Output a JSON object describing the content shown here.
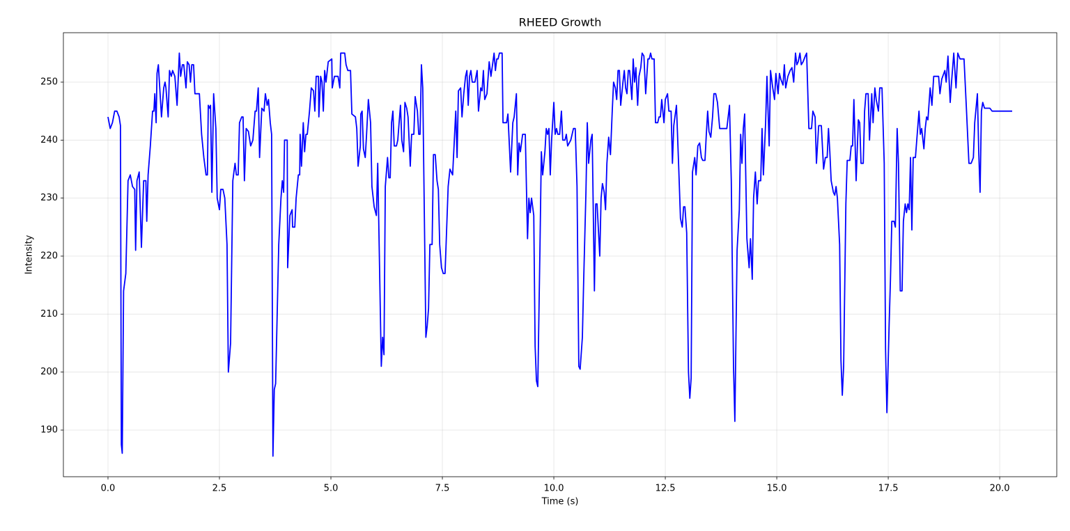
{
  "chart_data": {
    "type": "line",
    "title": "RHEED Growth",
    "x_label": "Time (s)",
    "y_label": "Intensity",
    "color": "#0000ff",
    "grid": true,
    "xlim": [
      -1.0,
      21.28
    ],
    "ylim": [
      181.96,
      258.52
    ],
    "xticks": [
      {
        "value": 0,
        "label": "0.0"
      },
      2.5,
      {
        "value": 5,
        "label": "5.0"
      },
      7.5,
      {
        "value": 10,
        "label": "10.0"
      },
      12.5,
      {
        "value": 15,
        "label": "15.0"
      },
      17.5,
      {
        "value": 20,
        "label": "20.0"
      }
    ],
    "yticks": [
      190,
      200,
      210,
      220,
      230,
      240,
      250
    ],
    "x": [
      0,
      0.05,
      0.1,
      0.15,
      0.2,
      0.25,
      0.28,
      0.3,
      0.32,
      0.35,
      0.4,
      0.45,
      0.5,
      0.55,
      0.6,
      0.62,
      0.65,
      0.7,
      0.75,
      0.8,
      0.85,
      0.87,
      0.9,
      0.95,
      1.0,
      1.03,
      1.05,
      1.08,
      1.1,
      1.13,
      1.2,
      1.25,
      1.28,
      1.3,
      1.35,
      1.38,
      1.42,
      1.45,
      1.5,
      1.55,
      1.6,
      1.63,
      1.67,
      1.7,
      1.75,
      1.78,
      1.82,
      1.85,
      1.88,
      1.92,
      1.95,
      2.05,
      2.1,
      2.15,
      2.2,
      2.23,
      2.25,
      2.28,
      2.3,
      2.33,
      2.37,
      2.42,
      2.45,
      2.5,
      2.53,
      2.58,
      2.62,
      2.67,
      2.7,
      2.75,
      2.8,
      2.85,
      2.88,
      2.92,
      2.95,
      3.0,
      3.03,
      3.06,
      3.1,
      3.15,
      3.2,
      3.25,
      3.3,
      3.33,
      3.37,
      3.4,
      3.45,
      3.5,
      3.53,
      3.57,
      3.6,
      3.64,
      3.67,
      3.7,
      3.73,
      3.76,
      3.83,
      3.88,
      3.91,
      3.94,
      3.96,
      4.02,
      4.03,
      4.08,
      4.13,
      4.14,
      4.19,
      4.22,
      4.27,
      4.3,
      4.31,
      4.34,
      4.38,
      4.41,
      4.44,
      4.47,
      4.52,
      4.56,
      4.61,
      4.64,
      4.67,
      4.72,
      4.73,
      4.77,
      4.8,
      4.83,
      4.86,
      4.89,
      4.94,
      5.02,
      5.03,
      5.08,
      5.16,
      5.2,
      5.22,
      5.31,
      5.34,
      5.38,
      5.44,
      5.47,
      5.55,
      5.58,
      5.61,
      5.66,
      5.67,
      5.7,
      5.73,
      5.77,
      5.8,
      5.84,
      5.89,
      5.92,
      5.97,
      6.02,
      6.05,
      6.13,
      6.16,
      6.19,
      6.22,
      6.27,
      6.3,
      6.33,
      6.36,
      6.39,
      6.42,
      6.47,
      6.5,
      6.56,
      6.59,
      6.63,
      6.66,
      6.7,
      6.73,
      6.78,
      6.81,
      6.86,
      6.89,
      6.94,
      6.97,
      7.0,
      7.03,
      7.06,
      7.13,
      7.16,
      7.19,
      7.22,
      7.27,
      7.3,
      7.34,
      7.38,
      7.41,
      7.44,
      7.48,
      7.52,
      7.56,
      7.63,
      7.67,
      7.73,
      7.8,
      7.83,
      7.86,
      7.91,
      7.94,
      7.98,
      8.02,
      8.05,
      8.08,
      8.11,
      8.14,
      8.17,
      8.23,
      8.28,
      8.31,
      8.36,
      8.39,
      8.42,
      8.45,
      8.5,
      8.55,
      8.59,
      8.66,
      8.69,
      8.72,
      8.75,
      8.78,
      8.84,
      8.86,
      8.94,
      8.97,
      9.03,
      9.08,
      9.11,
      9.16,
      9.19,
      9.22,
      9.25,
      9.3,
      9.36,
      9.41,
      9.44,
      9.47,
      9.5,
      9.55,
      9.58,
      9.61,
      9.64,
      9.69,
      9.72,
      9.75,
      9.8,
      9.83,
      9.86,
      9.89,
      9.92,
      9.95,
      10.0,
      10.03,
      10.06,
      10.09,
      10.13,
      10.17,
      10.2,
      10.25,
      10.28,
      10.31,
      10.38,
      10.44,
      10.48,
      10.52,
      10.56,
      10.59,
      10.64,
      10.67,
      10.72,
      10.75,
      10.78,
      10.83,
      10.86,
      10.91,
      10.94,
      10.97,
      11.03,
      11.06,
      11.09,
      11.13,
      11.16,
      11.19,
      11.23,
      11.27,
      11.31,
      11.34,
      11.38,
      11.41,
      11.44,
      11.47,
      11.5,
      11.55,
      11.58,
      11.61,
      11.64,
      11.67,
      11.7,
      11.75,
      11.78,
      11.81,
      11.84,
      11.88,
      11.91,
      11.95,
      11.98,
      12.02,
      12.06,
      12.11,
      12.14,
      12.17,
      12.2,
      12.25,
      12.28,
      12.33,
      12.36,
      12.39,
      12.42,
      12.47,
      12.5,
      12.55,
      12.58,
      12.63,
      12.66,
      12.69,
      12.75,
      12.8,
      12.84,
      12.88,
      12.91,
      12.94,
      12.98,
      13.02,
      13.05,
      13.08,
      13.11,
      13.16,
      13.19,
      13.23,
      13.27,
      13.31,
      13.34,
      13.39,
      13.42,
      13.45,
      13.48,
      13.52,
      13.56,
      13.59,
      13.63,
      13.67,
      13.72,
      13.88,
      13.94,
      13.98,
      14.03,
      14.06,
      14.11,
      14.16,
      14.19,
      14.22,
      14.25,
      14.28,
      14.33,
      14.38,
      14.41,
      14.45,
      14.48,
      14.52,
      14.56,
      14.59,
      14.64,
      14.67,
      14.7,
      14.75,
      14.78,
      14.83,
      14.86,
      14.91,
      14.95,
      14.98,
      15.03,
      15.06,
      15.09,
      15.14,
      15.17,
      15.2,
      15.25,
      15.3,
      15.34,
      15.38,
      15.42,
      15.45,
      15.48,
      15.52,
      15.55,
      15.59,
      15.64,
      15.67,
      15.72,
      15.78,
      15.81,
      15.86,
      15.89,
      15.94,
      16.0,
      16.05,
      16.09,
      16.13,
      16.16,
      16.19,
      16.22,
      16.27,
      16.3,
      16.33,
      16.36,
      16.41,
      16.44,
      16.47,
      16.5,
      16.55,
      16.58,
      16.64,
      16.67,
      16.7,
      16.73,
      16.78,
      16.83,
      16.86,
      16.89,
      16.94,
      16.97,
      17.0,
      17.05,
      17.08,
      17.13,
      17.16,
      17.2,
      17.23,
      17.28,
      17.31,
      17.36,
      17.41,
      17.44,
      17.47,
      17.52,
      17.55,
      17.58,
      17.63,
      17.66,
      17.7,
      17.73,
      17.77,
      17.81,
      17.84,
      17.88,
      17.91,
      17.94,
      17.97,
      18.0,
      18.03,
      18.06,
      18.11,
      18.16,
      18.19,
      18.22,
      18.25,
      18.3,
      18.33,
      18.36,
      18.39,
      18.44,
      18.48,
      18.52,
      18.63,
      18.66,
      18.7,
      18.77,
      18.8,
      18.84,
      18.89,
      18.92,
      18.97,
      19.02,
      19.06,
      19.11,
      19.2,
      19.25,
      19.28,
      19.31,
      19.36,
      19.41,
      19.44,
      19.5,
      19.53,
      19.56,
      19.59,
      19.62,
      19.66,
      19.78,
      19.83,
      20.28
    ],
    "values": [
      244,
      242,
      243,
      245,
      245,
      244,
      242.5,
      187.5,
      186,
      214,
      217,
      233,
      234,
      232,
      231.5,
      221,
      233,
      234.5,
      221.5,
      233,
      233,
      226,
      234,
      239,
      245,
      245,
      248,
      243,
      251.5,
      253,
      244,
      249,
      250,
      249,
      244,
      252,
      251,
      252,
      251,
      246,
      255,
      251,
      253,
      253,
      249,
      253.5,
      253,
      250,
      253,
      253,
      248,
      248,
      241,
      237,
      234,
      234,
      246,
      245.5,
      246,
      231,
      248,
      242,
      230,
      228,
      231.5,
      231.5,
      230,
      222,
      200,
      205,
      233,
      236,
      234,
      234,
      243,
      244,
      244,
      233,
      242,
      241.5,
      239,
      240,
      245,
      245,
      249,
      237,
      245.5,
      245,
      248,
      246,
      247,
      243,
      241,
      185.5,
      197,
      198,
      222,
      230,
      233,
      231,
      240,
      240,
      218,
      227,
      228,
      225,
      225,
      230,
      234,
      234,
      241,
      235.5,
      243,
      238,
      241,
      241,
      245,
      249,
      248.5,
      245,
      251,
      251,
      244,
      251,
      250,
      245,
      252,
      250,
      253.5,
      254,
      249,
      251,
      251,
      249,
      255,
      255,
      253,
      252,
      252,
      244.5,
      244,
      242,
      235.5,
      239,
      244.5,
      245,
      238.5,
      237,
      241,
      247,
      243,
      232,
      228.5,
      227,
      236,
      201,
      206,
      203,
      232,
      237,
      233.5,
      233.5,
      243,
      245,
      239,
      239,
      240,
      246,
      240,
      238,
      246.5,
      245.5,
      244,
      235.5,
      241,
      241,
      247.5,
      245,
      241,
      241,
      253,
      249,
      206,
      208,
      211,
      222,
      222,
      237.5,
      237.5,
      233,
      231.5,
      222,
      218,
      217,
      217,
      232,
      235,
      234,
      245,
      237,
      248.5,
      249,
      244,
      248,
      251,
      252,
      246,
      251,
      252,
      250,
      250,
      252,
      245,
      249,
      248.5,
      252,
      247,
      248,
      253.5,
      251,
      255,
      252,
      254,
      254,
      255,
      255,
      243,
      243,
      244.5,
      234.5,
      243,
      244,
      248,
      234,
      239.5,
      238,
      241,
      241,
      223,
      230,
      227.5,
      230,
      227,
      204.5,
      198.5,
      197.5,
      222,
      238,
      234,
      238,
      242,
      241,
      242,
      234,
      240,
      246.5,
      241,
      242,
      241,
      241,
      245,
      240,
      240,
      241,
      239,
      240,
      242,
      242,
      232,
      201,
      200.5,
      206,
      216,
      231,
      243,
      236,
      240,
      241,
      214,
      229,
      229,
      220,
      230,
      232.5,
      231,
      228,
      236,
      240.5,
      237.5,
      245,
      250,
      249,
      247,
      252,
      252,
      246,
      250,
      252,
      249,
      248,
      252,
      252,
      247,
      254,
      250,
      252.5,
      246,
      251,
      252.5,
      255,
      254.5,
      248,
      254,
      254,
      255,
      254,
      254,
      243,
      243,
      244,
      244,
      247,
      243,
      247,
      248,
      245,
      245,
      236,
      242.5,
      246,
      235.5,
      226.5,
      225,
      228.5,
      228.5,
      224,
      200,
      195.5,
      199,
      234.5,
      237,
      234,
      239,
      239.5,
      237,
      236.5,
      236.5,
      241,
      245,
      241.5,
      240.5,
      244,
      248,
      248,
      246.5,
      242,
      242,
      246,
      233,
      201,
      191.5,
      221,
      228,
      241,
      236,
      242,
      244.5,
      223,
      218,
      223,
      216,
      230,
      234.5,
      229,
      233,
      233,
      242,
      234,
      243,
      251,
      239,
      252,
      249,
      247,
      251.5,
      248,
      251.5,
      250.5,
      249.5,
      253,
      249,
      251,
      252,
      252.5,
      250,
      255,
      253,
      253.5,
      255,
      253,
      253.5,
      254.5,
      255,
      242,
      242,
      245,
      244,
      236,
      242.5,
      242.5,
      235,
      237,
      237,
      242,
      238,
      233,
      231,
      230.5,
      232,
      230,
      222,
      202,
      196,
      201,
      229,
      236.5,
      236.5,
      239,
      239,
      247,
      233,
      243.5,
      243,
      236,
      236,
      245,
      248,
      248,
      240,
      248,
      243,
      249,
      247,
      245,
      249,
      249,
      236,
      204,
      193,
      208,
      216,
      226,
      226,
      225,
      242,
      236,
      214,
      214,
      226,
      229,
      227.5,
      229,
      228,
      237,
      224.5,
      237,
      237,
      242,
      245,
      241,
      242,
      238.5,
      242,
      244,
      243.5,
      249,
      246,
      251,
      251,
      248,
      250.5,
      252,
      250,
      254.5,
      246.5,
      250,
      255,
      249,
      255,
      254,
      254,
      246,
      241,
      236,
      236,
      237,
      243,
      248,
      238,
      231,
      245,
      246.5,
      245.5,
      245.5,
      245,
      245
    ]
  }
}
